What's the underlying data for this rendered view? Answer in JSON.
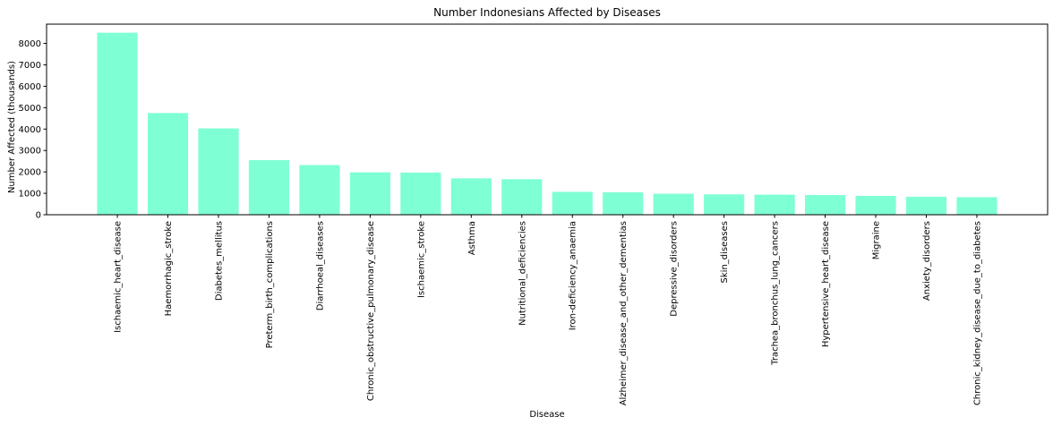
{
  "chart_data": {
    "type": "bar",
    "title": "Number Indonesians Affected by Diseases",
    "xlabel": "Disease",
    "ylabel": "Number Affected (thousands)",
    "ylim": [
      0,
      8900
    ],
    "yticks": [
      0,
      1000,
      2000,
      3000,
      4000,
      5000,
      6000,
      7000,
      8000
    ],
    "grid": false,
    "bar_color": "#7fffd4",
    "categories": [
      "Ischaemic_heart_disease",
      "Haemorrhagic_stroke",
      "Diabetes_mellitus",
      "Preterm_birth_complications",
      "Diarrhoeal_diseases",
      "Chronic_obstructive_pulmonary_disease",
      "Ischaemic_stroke",
      "Asthma",
      "Nutritional_deficiencies",
      "Iron-deficiency_anaemia",
      "Alzheimer_disease_and_other_dementias",
      "Depressive_disorders",
      "Skin_diseases",
      "Trachea_bronchus_lung_cancers",
      "Hypertensive_heart_disease",
      "Migraine",
      "Anxiety_disorders",
      "Chronic_kidney_disease_due_to_diabetes"
    ],
    "values": [
      8500,
      4750,
      4030,
      2550,
      2320,
      1980,
      1970,
      1700,
      1660,
      1070,
      1050,
      980,
      950,
      940,
      920,
      880,
      840,
      820
    ]
  }
}
